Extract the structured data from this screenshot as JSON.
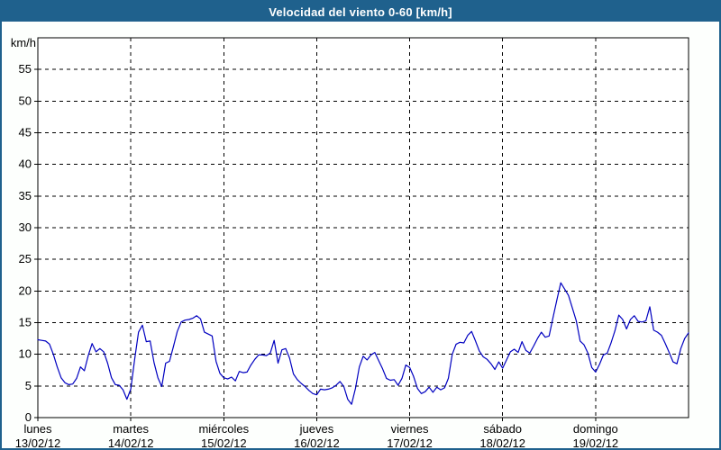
{
  "window": {
    "title": "Velocidad del viento 0-60 [km/h]"
  },
  "colors": {
    "titlebar_bg": "#1f618d",
    "frame_border": "#1f618d",
    "page_bg": "#fdfffd",
    "plot_bg": "#ffffff",
    "line": "#0000c0",
    "grid": "#000000",
    "axis": "#000000",
    "text": "#000000"
  },
  "chart_data": {
    "type": "line",
    "title": "Velocidad del viento 0-60 [km/h]",
    "ylabel": "km/h",
    "xlabel": "",
    "ylim": [
      0,
      60
    ],
    "ytick_interval": 5,
    "ytick_labels": [
      "0",
      "5",
      "10",
      "15",
      "20",
      "25",
      "30",
      "35",
      "40",
      "45",
      "50",
      "55"
    ],
    "xlim_hours": [
      0,
      168
    ],
    "grid": "dashed",
    "legend_position": "none",
    "day_ticks": [
      {
        "hour": 0,
        "day": "lunes",
        "date": "13/02/12"
      },
      {
        "hour": 24,
        "day": "martes",
        "date": "14/02/12"
      },
      {
        "hour": 48,
        "day": "miércoles",
        "date": "15/02/12"
      },
      {
        "hour": 72,
        "day": "jueves",
        "date": "16/02/12"
      },
      {
        "hour": 96,
        "day": "viernes",
        "date": "17/02/12"
      },
      {
        "hour": 120,
        "day": "sábado",
        "date": "18/02/12"
      },
      {
        "hour": 144,
        "day": "domingo",
        "date": "19/02/12"
      }
    ],
    "series": [
      {
        "name": "Velocidad del viento",
        "color": "#0000c0",
        "x_start_hour": 0,
        "step_hours": 1,
        "unit": "km/h",
        "values": [
          12.3,
          12.2,
          12.1,
          11.6,
          10.0,
          8.0,
          6.3,
          5.5,
          5.2,
          5.3,
          6.2,
          8.0,
          7.4,
          9.8,
          11.7,
          10.4,
          10.9,
          10.4,
          8.6,
          6.3,
          5.2,
          5.1,
          4.4,
          2.9,
          4.5,
          9.2,
          13.5,
          14.6,
          12.0,
          12.1,
          8.7,
          6.3,
          4.9,
          8.6,
          8.9,
          11.2,
          13.6,
          15.1,
          15.4,
          15.5,
          15.7,
          16.1,
          15.6,
          13.5,
          13.2,
          12.9,
          8.9,
          7.0,
          6.3,
          6.1,
          6.4,
          5.8,
          7.3,
          7.1,
          7.2,
          8.3,
          9.2,
          9.9,
          9.9,
          9.8,
          10.2,
          12.2,
          8.6,
          10.7,
          10.9,
          9.4,
          6.9,
          6.0,
          5.4,
          4.9,
          4.3,
          3.8,
          3.6,
          4.5,
          4.4,
          4.5,
          4.7,
          5.1,
          5.7,
          4.9,
          2.9,
          2.1,
          4.6,
          8.0,
          9.7,
          9.1,
          9.9,
          10.3,
          9.0,
          7.7,
          6.2,
          5.9,
          6.0,
          5.1,
          6.2,
          8.3,
          7.9,
          6.5,
          4.6,
          3.8,
          4.1,
          4.8,
          4.0,
          4.8,
          4.4,
          4.7,
          6.2,
          10.0,
          11.6,
          11.9,
          11.8,
          13.0,
          13.6,
          12.1,
          10.5,
          9.6,
          9.2,
          8.5,
          7.6,
          8.8,
          7.8,
          9.1,
          10.4,
          10.8,
          10.3,
          12.0,
          10.6,
          10.2,
          11.3,
          12.5,
          13.5,
          12.7,
          12.9,
          15.8,
          18.6,
          21.3,
          20.3,
          19.3,
          17.3,
          15.3,
          12.1,
          11.5,
          10.2,
          7.9,
          7.2,
          8.4,
          9.9,
          10.2,
          11.8,
          13.7,
          16.2,
          15.5,
          14.0,
          15.5,
          16.1,
          15.2,
          15.1,
          15.3,
          17.5,
          13.8,
          13.5,
          13.0,
          11.7,
          10.3,
          8.8,
          8.5,
          10.9,
          12.5,
          13.4
        ]
      }
    ]
  }
}
